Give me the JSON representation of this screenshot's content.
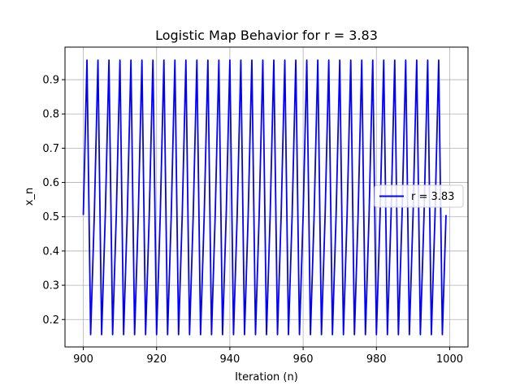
{
  "chart_data": {
    "type": "line",
    "title": "Logistic Map Behavior for r = 3.83",
    "xlabel": "Iteration (n)",
    "ylabel": "x_n",
    "xlim": [
      895,
      1005
    ],
    "ylim": [
      0.12,
      0.995
    ],
    "xticks": [
      900,
      920,
      940,
      960,
      980,
      1000
    ],
    "yticks": [
      0.2,
      0.3,
      0.4,
      0.5,
      0.6,
      0.7,
      0.8,
      0.9
    ],
    "grid": true,
    "legend_position": "center-right",
    "series": [
      {
        "name": "r = 3.83",
        "color": "#0000ff",
        "x_start": 900,
        "x_end": 999,
        "values": [
          0.505,
          0.957,
          0.156,
          0.505,
          0.957,
          0.156,
          0.505,
          0.957,
          0.156,
          0.505,
          0.957,
          0.156,
          0.505,
          0.957,
          0.156,
          0.505,
          0.957,
          0.156,
          0.505,
          0.957,
          0.156,
          0.505,
          0.957,
          0.156,
          0.505,
          0.957,
          0.156,
          0.505,
          0.957,
          0.156,
          0.505,
          0.957,
          0.156,
          0.505,
          0.957,
          0.156,
          0.505,
          0.957,
          0.156,
          0.505,
          0.957,
          0.156,
          0.505,
          0.957,
          0.156,
          0.505,
          0.957,
          0.156,
          0.505,
          0.957,
          0.156,
          0.505,
          0.957,
          0.156,
          0.505,
          0.957,
          0.156,
          0.505,
          0.957,
          0.156,
          0.505,
          0.957,
          0.156,
          0.505,
          0.957,
          0.156,
          0.505,
          0.957,
          0.156,
          0.505,
          0.957,
          0.156,
          0.505,
          0.957,
          0.156,
          0.505,
          0.957,
          0.156,
          0.505,
          0.957,
          0.156,
          0.505,
          0.957,
          0.156,
          0.505,
          0.957,
          0.156,
          0.505,
          0.957,
          0.156,
          0.505,
          0.957,
          0.156,
          0.505,
          0.957,
          0.156,
          0.505,
          0.957,
          0.156,
          0.505
        ]
      }
    ]
  }
}
